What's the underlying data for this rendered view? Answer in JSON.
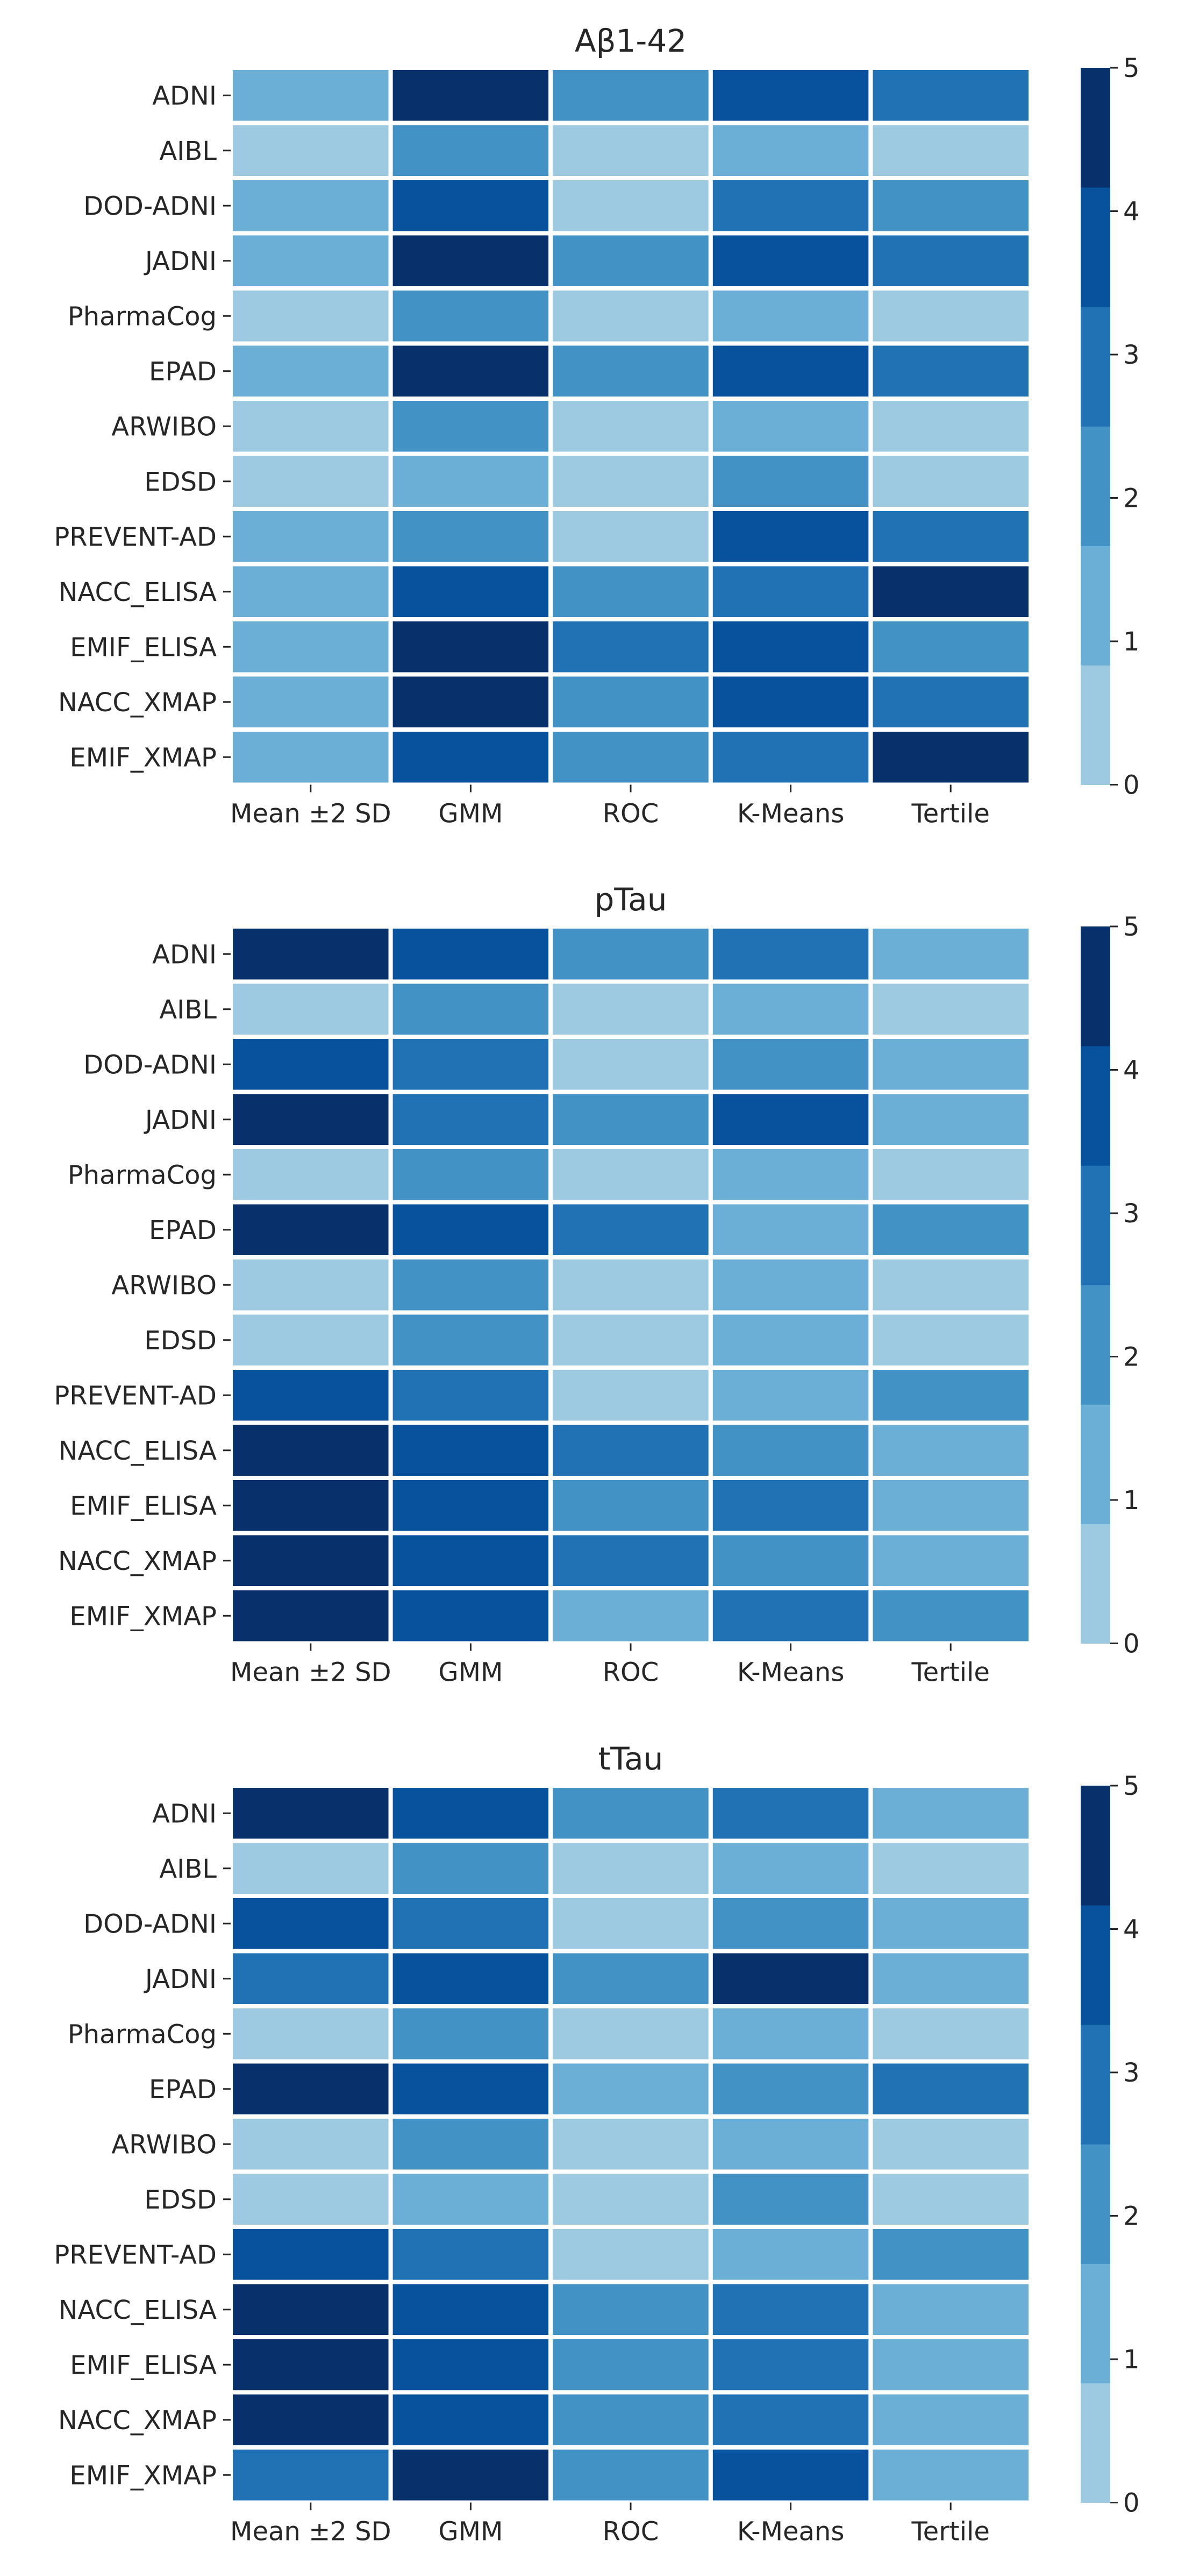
{
  "chart_data": [
    {
      "type": "heatmap",
      "title": "Aβ1-42",
      "rows": [
        "ADNI",
        "AIBL",
        "DOD-ADNI",
        "JADNI",
        "PharmaCog",
        "EPAD",
        "ARWIBO",
        "EDSD",
        "PREVENT-AD",
        "NACC_ELISA",
        "EMIF_ELISA",
        "NACC_XMAP",
        "EMIF_XMAP"
      ],
      "columns": [
        "Mean ±2 SD",
        "GMM",
        "ROC",
        "K-Means",
        "Tertile"
      ],
      "values": [
        [
          1,
          5,
          2,
          4,
          3
        ],
        [
          0,
          2,
          0,
          1,
          0
        ],
        [
          1,
          4,
          0,
          3,
          2
        ],
        [
          1,
          5,
          2,
          4,
          3
        ],
        [
          0,
          2,
          0,
          1,
          0
        ],
        [
          1,
          5,
          2,
          4,
          3
        ],
        [
          0,
          2,
          0,
          1,
          0
        ],
        [
          0,
          1,
          0,
          2,
          0
        ],
        [
          1,
          2,
          0,
          4,
          3
        ],
        [
          1,
          4,
          2,
          3,
          5
        ],
        [
          1,
          5,
          3,
          4,
          2
        ],
        [
          1,
          5,
          2,
          4,
          3
        ],
        [
          1,
          4,
          2,
          3,
          5
        ]
      ],
      "colorbar": {
        "min": 0,
        "max": 5,
        "ticks": [
          "0",
          "1",
          "2",
          "3",
          "4",
          "5"
        ]
      },
      "colormap": "Blues"
    },
    {
      "type": "heatmap",
      "title": "pTau",
      "rows": [
        "ADNI",
        "AIBL",
        "DOD-ADNI",
        "JADNI",
        "PharmaCog",
        "EPAD",
        "ARWIBO",
        "EDSD",
        "PREVENT-AD",
        "NACC_ELISA",
        "EMIF_ELISA",
        "NACC_XMAP",
        "EMIF_XMAP"
      ],
      "columns": [
        "Mean ±2 SD",
        "GMM",
        "ROC",
        "K-Means",
        "Tertile"
      ],
      "values": [
        [
          5,
          4,
          2,
          3,
          1
        ],
        [
          0,
          2,
          0,
          1,
          0
        ],
        [
          4,
          3,
          0,
          2,
          1
        ],
        [
          5,
          3,
          2,
          4,
          1
        ],
        [
          0,
          2,
          0,
          1,
          0
        ],
        [
          5,
          4,
          3,
          1,
          2
        ],
        [
          0,
          2,
          0,
          1,
          0
        ],
        [
          0,
          2,
          0,
          1,
          0
        ],
        [
          4,
          3,
          0,
          1,
          2
        ],
        [
          5,
          4,
          3,
          2,
          1
        ],
        [
          5,
          4,
          2,
          3,
          1
        ],
        [
          5,
          4,
          3,
          2,
          1
        ],
        [
          5,
          4,
          1,
          3,
          2
        ]
      ],
      "colorbar": {
        "min": 0,
        "max": 5,
        "ticks": [
          "0",
          "1",
          "2",
          "3",
          "4",
          "5"
        ]
      },
      "colormap": "Blues"
    },
    {
      "type": "heatmap",
      "title": "tTau",
      "rows": [
        "ADNI",
        "AIBL",
        "DOD-ADNI",
        "JADNI",
        "PharmaCog",
        "EPAD",
        "ARWIBO",
        "EDSD",
        "PREVENT-AD",
        "NACC_ELISA",
        "EMIF_ELISA",
        "NACC_XMAP",
        "EMIF_XMAP"
      ],
      "columns": [
        "Mean ±2 SD",
        "GMM",
        "ROC",
        "K-Means",
        "Tertile"
      ],
      "values": [
        [
          5,
          4,
          2,
          3,
          1
        ],
        [
          0,
          2,
          0,
          1,
          0
        ],
        [
          4,
          3,
          0,
          2,
          1
        ],
        [
          3,
          4,
          2,
          5,
          1
        ],
        [
          0,
          2,
          0,
          1,
          0
        ],
        [
          5,
          4,
          1,
          2,
          3
        ],
        [
          0,
          2,
          0,
          1,
          0
        ],
        [
          0,
          1,
          0,
          2,
          0
        ],
        [
          4,
          3,
          0,
          1,
          2
        ],
        [
          5,
          4,
          2,
          3,
          1
        ],
        [
          5,
          4,
          2,
          3,
          1
        ],
        [
          5,
          4,
          2,
          3,
          1
        ],
        [
          3,
          5,
          2,
          4,
          1
        ]
      ],
      "colorbar": {
        "min": 0,
        "max": 5,
        "ticks": [
          "0",
          "1",
          "2",
          "3",
          "4",
          "5"
        ]
      },
      "colormap": "Blues"
    }
  ],
  "colors": {
    "scale": [
      "#9ecae1",
      "#6baed6",
      "#4292c6",
      "#2171b5",
      "#08519c",
      "#08306b"
    ],
    "text": "#262626",
    "cell_border": "#ffffff"
  }
}
